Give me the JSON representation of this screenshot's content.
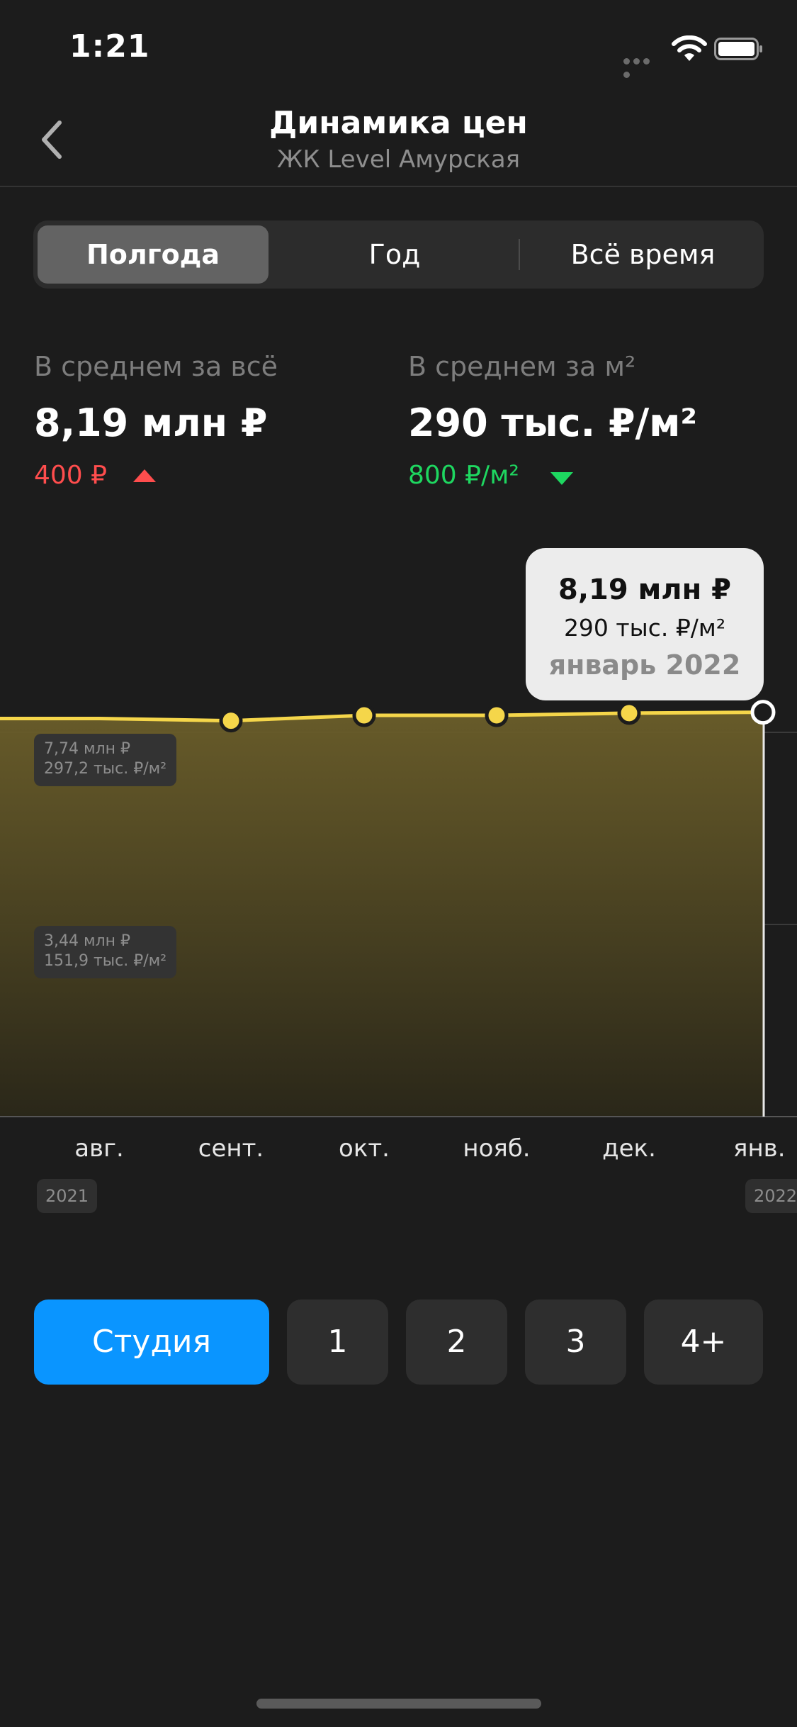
{
  "status_bar": {
    "time": "1:21"
  },
  "header": {
    "title": "Динамика цен",
    "subtitle": "ЖК Level Амурская"
  },
  "periods": {
    "items": [
      "Полгода",
      "Год",
      "Всё время"
    ],
    "selected": 0
  },
  "stats": {
    "total": {
      "label": "В среднем за всё",
      "value": "8,19 млн ₽",
      "delta": "400 ₽",
      "direction": "up",
      "color": "#ff4d4d"
    },
    "per_m2": {
      "label": "В среднем за м²",
      "value": "290 тыс. ₽/м²",
      "delta": "800 ₽/м²",
      "direction": "down",
      "color": "#1ed760"
    }
  },
  "tooltip": {
    "price": "8,19 млн ₽",
    "per_m2": "290 тыс. ₽/м²",
    "date": "январь 2022"
  },
  "y_labels": {
    "top": {
      "price": "7,74 млн ₽",
      "per_m2": "297,2 тыс. ₽/м²"
    },
    "mid": {
      "price": "3,44 млн ₽",
      "per_m2": "151,9 тыс. ₽/м²"
    }
  },
  "chart_data": {
    "type": "area",
    "categories": [
      "авг.",
      "сент.",
      "окт.",
      "нояб.",
      "дек.",
      "янв."
    ],
    "values": [
      8.05,
      8.0,
      8.12,
      8.12,
      8.17,
      8.19
    ],
    "y_ticks": [
      7.74,
      3.44
    ],
    "ylim": [
      0,
      8.6
    ],
    "years": {
      "start": "2021",
      "end": "2022"
    },
    "line_color": "#f5d64a",
    "selected_index": 5
  },
  "rooms": {
    "items": [
      "Студия",
      "1",
      "2",
      "3",
      "4+"
    ],
    "selected": 0,
    "accent": "#0a95ff"
  }
}
